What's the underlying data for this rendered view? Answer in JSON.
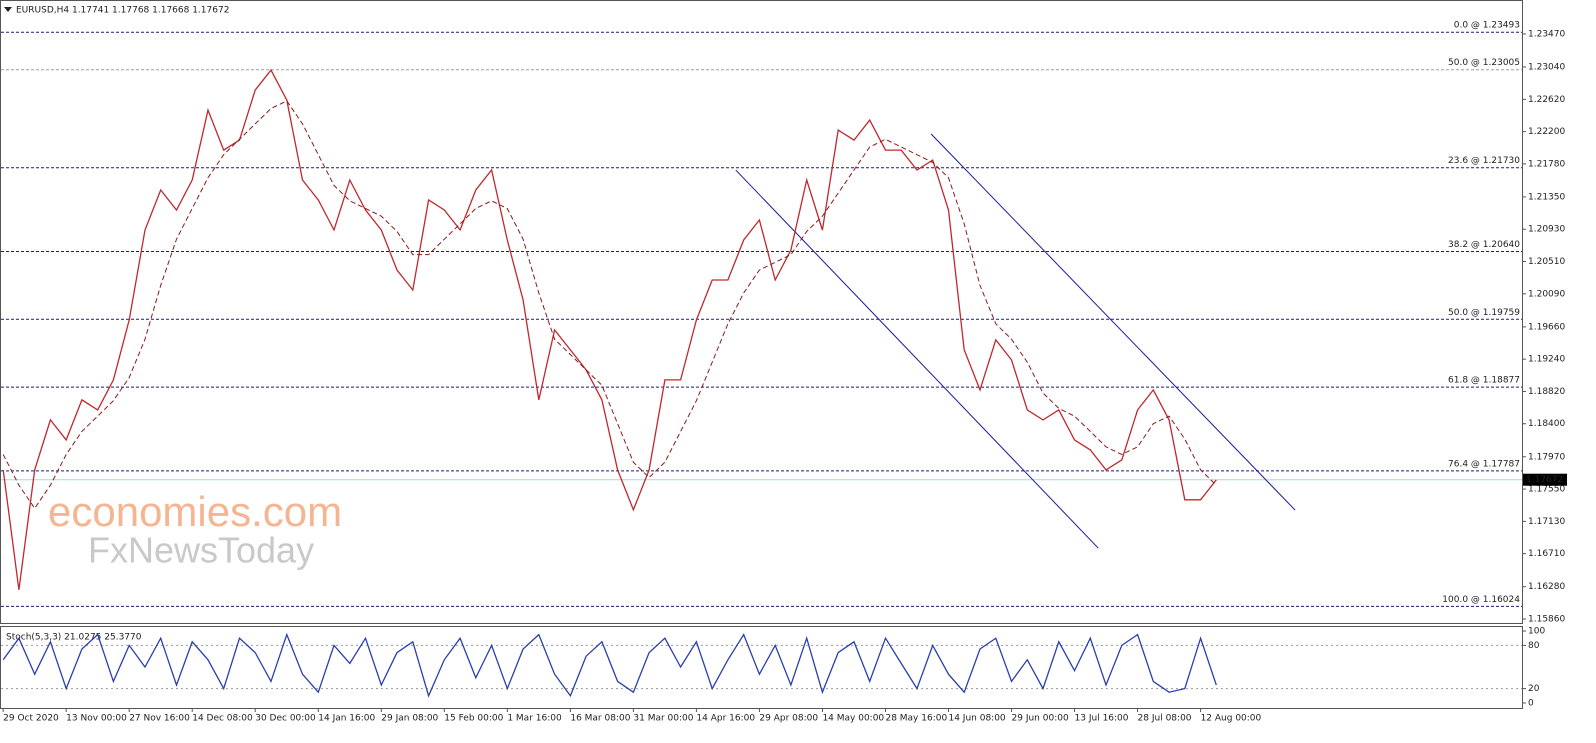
{
  "chart_data": [
    {
      "type": "line",
      "title": "EURUSD,H4  1.17741 1.17768 1.17668 1.17672",
      "xlim": [
        -0.2,
        96.4
      ],
      "ylim": [
        1.15808,
        1.23912
      ],
      "yticks": [
        {
          "value": 1.2347,
          "label": "1.23470"
        },
        {
          "value": 1.2304,
          "label": "1.23040"
        },
        {
          "value": 1.2262,
          "label": "1.22620"
        },
        {
          "value": 1.222,
          "label": "1.22200"
        },
        {
          "value": 1.2178,
          "label": "1.21780"
        },
        {
          "value": 1.2135,
          "label": "1.21350"
        },
        {
          "value": 1.2093,
          "label": "1.20930"
        },
        {
          "value": 1.2051,
          "label": "1.20510"
        },
        {
          "value": 1.2009,
          "label": "1.20090"
        },
        {
          "value": 1.1966,
          "label": "1.19660"
        },
        {
          "value": 1.1924,
          "label": "1.19240"
        },
        {
          "value": 1.1882,
          "label": "1.18820"
        },
        {
          "value": 1.184,
          "label": "1.18400"
        },
        {
          "value": 1.1797,
          "label": "1.17970"
        },
        {
          "value": 1.1755,
          "label": "1.17550"
        },
        {
          "value": 1.1713,
          "label": "1.17130"
        },
        {
          "value": 1.1671,
          "label": "1.16710"
        },
        {
          "value": 1.1628,
          "label": "1.16280"
        },
        {
          "value": 1.1586,
          "label": "1.15860"
        }
      ],
      "series": [
        {
          "name": "EURUSD",
          "color": "#c0282d",
          "values": [
            1.178,
            1.1624,
            1.178,
            1.1845,
            1.1819,
            1.1871,
            1.1858,
            1.1897,
            1.1975,
            1.2092,
            1.2144,
            1.2118,
            1.2157,
            1.2248,
            1.2196,
            1.2209,
            1.2274,
            1.23,
            1.2261,
            1.2157,
            1.2131,
            1.2092,
            1.2157,
            1.2118,
            1.2092,
            1.204,
            1.2014,
            1.2131,
            1.2118,
            1.2092,
            1.2144,
            1.217,
            1.2079,
            1.2001,
            1.1871,
            1.1962,
            1.1936,
            1.191,
            1.1871,
            1.178,
            1.1728,
            1.178,
            1.1897,
            1.1897,
            1.1975,
            1.2027,
            1.2027,
            1.2079,
            1.2105,
            1.2027,
            1.2066,
            1.2157,
            1.2092,
            1.2222,
            1.2209,
            1.2235,
            1.2196,
            1.2196,
            1.217,
            1.2183,
            1.2118,
            1.1936,
            1.1884,
            1.1949,
            1.1923,
            1.1858,
            1.1845,
            1.1858,
            1.1819,
            1.1806,
            1.178,
            1.1793,
            1.1858,
            1.1884,
            1.1845,
            1.1741,
            1.1741,
            1.1767
          ]
        },
        {
          "name": "MA",
          "color": "#8b1a1a",
          "values": [
            1.18,
            1.176,
            1.173,
            1.176,
            1.18,
            1.183,
            1.185,
            1.187,
            1.19,
            1.195,
            1.202,
            1.208,
            1.212,
            1.216,
            1.219,
            1.221,
            1.223,
            1.225,
            1.226,
            1.223,
            1.219,
            1.215,
            1.213,
            1.212,
            1.211,
            1.209,
            1.206,
            1.206,
            1.208,
            1.21,
            1.212,
            1.213,
            1.212,
            1.208,
            1.201,
            1.195,
            1.193,
            1.191,
            1.189,
            1.184,
            1.179,
            1.177,
            1.179,
            1.183,
            1.187,
            1.192,
            1.197,
            1.201,
            1.204,
            1.205,
            1.206,
            1.209,
            1.211,
            1.214,
            1.217,
            1.22,
            1.221,
            1.22,
            1.219,
            1.218,
            1.216,
            1.21,
            1.202,
            1.197,
            1.195,
            1.192,
            1.188,
            1.186,
            1.185,
            1.183,
            1.181,
            1.18,
            1.181,
            1.184,
            1.185,
            1.182,
            1.178,
            1.176
          ]
        }
      ],
      "levels": [
        {
          "value": 1.23493,
          "label": "0.0 @ 1.23493",
          "color": "#1a1a7a"
        },
        {
          "value": 1.23005,
          "label": "50.0 @ 1.23005",
          "color": "#a0a0a0"
        },
        {
          "value": 1.2173,
          "label": "23.6 @ 1.21730",
          "color": "#1a1a7a"
        },
        {
          "value": 1.2064,
          "label": "38.2 @ 1.20640",
          "color": "#1a1a7a"
        },
        {
          "value": 1.19759,
          "label": "50.0 @ 1.19759",
          "color": "#1a1a7a"
        },
        {
          "value": 1.18877,
          "label": "61.8 @ 1.18877",
          "color": "#1a1a7a"
        },
        {
          "value": 1.17787,
          "label": "76.4 @ 1.17787",
          "color": "#1a1a7a"
        },
        {
          "value": 1.16024,
          "label": "100.0 @ 1.16024",
          "color": "#1a1a7a"
        }
      ],
      "trendlines": [
        {
          "color": "#1a1aa0",
          "x": [
            46.5,
            69.5
          ],
          "y": [
            1.217,
            1.16783
          ]
        },
        {
          "color": "#1a1aa0",
          "x": [
            58.9,
            82.0
          ],
          "y": [
            1.22169,
            1.17277
          ]
        }
      ],
      "current_price": 1.17672,
      "watermark": [
        "economies.com",
        "FxNewsToday"
      ]
    },
    {
      "type": "line",
      "title": "Stoch(5,3,3) 21.0275 25.3770",
      "xlim": [
        -0.2,
        96.4
      ],
      "ylim": [
        0,
        100
      ],
      "yticks": [
        0,
        20,
        80,
        100
      ],
      "levels": [
        20,
        80
      ],
      "xticks": [
        {
          "value": 0,
          "label": "29 Oct 2020"
        },
        {
          "value": 4,
          "label": "13 Nov 00:00"
        },
        {
          "value": 8,
          "label": "27 Nov 16:00"
        },
        {
          "value": 12,
          "label": "14 Dec 08:00"
        },
        {
          "value": 16,
          "label": "30 Dec 00:00"
        },
        {
          "value": 20,
          "label": "14 Jan 16:00"
        },
        {
          "value": 24,
          "label": "29 Jan 08:00"
        },
        {
          "value": 28,
          "label": "15 Feb 00:00"
        },
        {
          "value": 32,
          "label": "1 Mar 16:00"
        },
        {
          "value": 36,
          "label": "16 Mar 08:00"
        },
        {
          "value": 40,
          "label": "31 Mar 00:00"
        },
        {
          "value": 44,
          "label": "14 Apr 16:00"
        },
        {
          "value": 48,
          "label": "29 Apr 08:00"
        },
        {
          "value": 52,
          "label": "14 May 00:00"
        },
        {
          "value": 56,
          "label": "28 May 16:00"
        },
        {
          "value": 60,
          "label": "14 Jun 08:00"
        },
        {
          "value": 64,
          "label": "29 Jun 00:00"
        },
        {
          "value": 68,
          "label": "13 Jul 16:00"
        },
        {
          "value": 72,
          "label": "28 Jul 08:00"
        },
        {
          "value": 76,
          "label": "12 Aug 00:00"
        }
      ],
      "series": [
        {
          "name": "Stoch",
          "color": "#2a3fb0",
          "values": [
            60,
            90,
            40,
            85,
            20,
            75,
            95,
            30,
            80,
            50,
            90,
            25,
            85,
            60,
            20,
            90,
            70,
            30,
            95,
            40,
            15,
            80,
            55,
            90,
            25,
            70,
            85,
            10,
            60,
            90,
            35,
            80,
            20,
            75,
            95,
            40,
            10,
            65,
            85,
            30,
            15,
            70,
            90,
            50,
            85,
            20,
            60,
            95,
            40,
            80,
            25,
            90,
            15,
            70,
            85,
            30,
            90,
            55,
            20,
            80,
            40,
            15,
            75,
            90,
            30,
            60,
            20,
            85,
            45,
            90,
            25,
            80,
            95,
            30,
            15,
            20,
            90,
            25
          ]
        }
      ]
    }
  ]
}
